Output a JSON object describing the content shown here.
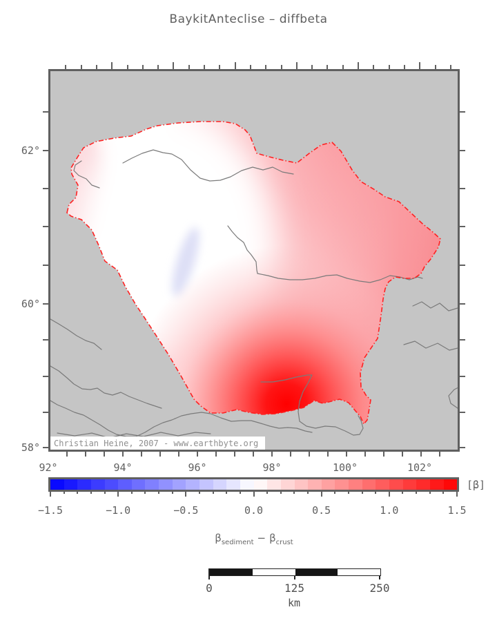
{
  "title": "BaykitAnteclise – diffbeta",
  "map": {
    "x_axis_labels": [
      "92°",
      "94°",
      "96°",
      "98°",
      "100°",
      "102°"
    ],
    "y_axis_labels": [
      "62°",
      "60°",
      "58°"
    ],
    "watermark": "Christian Heine, 2007 - www.earthbyte.org"
  },
  "colorbar": {
    "unit_label": "[β]",
    "tick_labels": [
      "−1.5",
      "−1.0",
      "−0.5",
      "0.0",
      "0.5",
      "1.0",
      "1.5"
    ],
    "tick_values": [
      -1.5,
      -1.0,
      -0.5,
      0.0,
      0.5,
      1.0,
      1.5
    ],
    "min": -1.5,
    "max": 1.5,
    "step": 0.1,
    "palette": {
      "negative": "#0000ff",
      "zero": "#ffffff",
      "positive": "#ff0000"
    }
  },
  "quantity_label": {
    "symbol_1": "β",
    "subscript_1": "sediment",
    "operator": "−",
    "symbol_2": "β",
    "subscript_2": "crust"
  },
  "scale_bar": {
    "tick_labels": [
      "0",
      "125",
      "250"
    ],
    "tick_values": [
      0,
      125,
      250
    ],
    "unit_label": "km"
  }
}
